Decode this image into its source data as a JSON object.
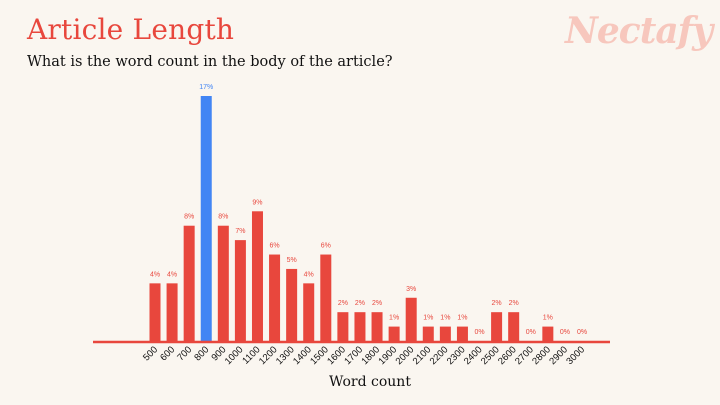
{
  "header": {
    "title": "Article Length",
    "subtitle": "What is the word count in the body of the article?",
    "logo": "Nectafy"
  },
  "colors": {
    "bar": "#e8473d",
    "highlight": "#4285f4",
    "axis": "#e8473d",
    "title": "#e8473d",
    "logo": "#f7c7bd"
  },
  "chart_data": {
    "type": "bar",
    "xlabel": "Word count",
    "ylabel": "",
    "ylim": [
      0,
      17
    ],
    "grid": false,
    "highlight_index": 3,
    "categories": [
      "500",
      "600",
      "700",
      "800",
      "900",
      "1000",
      "1100",
      "1200",
      "1300",
      "1400",
      "1500",
      "1600",
      "1700",
      "1800",
      "1900",
      "2000",
      "2100",
      "2200",
      "2300",
      "2400",
      "2500",
      "2600",
      "2700",
      "2800",
      "2900",
      "3000"
    ],
    "values": [
      4,
      4,
      8,
      17,
      8,
      7,
      9,
      6,
      5,
      4,
      6,
      2,
      2,
      2,
      1,
      3,
      1,
      1,
      1,
      0,
      2,
      2,
      0,
      1,
      0,
      0
    ],
    "value_labels": [
      "4%",
      "4%",
      "8%",
      "17%",
      "8%",
      "7%",
      "9%",
      "6%",
      "5%",
      "4%",
      "6%",
      "2%",
      "2%",
      "2%",
      "1%",
      "3%",
      "1%",
      "1%",
      "1%",
      "0%",
      "2%",
      "2%",
      "0%",
      "1%",
      "0%",
      "0%"
    ]
  }
}
